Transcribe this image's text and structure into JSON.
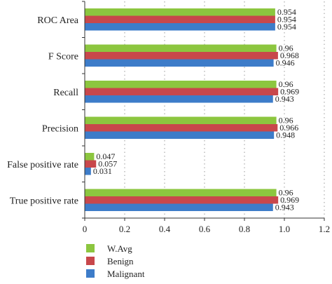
{
  "chart_data": {
    "type": "bar",
    "orientation": "horizontal",
    "categories": [
      "ROC Area",
      "F Score",
      "Recall",
      "Precision",
      "False positive rate",
      "True positive rate"
    ],
    "series": [
      {
        "name": "W.Avg",
        "color": "#8cc63f",
        "values": [
          0.954,
          0.96,
          0.96,
          0.96,
          0.047,
          0.96
        ],
        "labels": [
          "0.954",
          "0.96",
          "0.96",
          "0.96",
          "0.047",
          "0.96"
        ]
      },
      {
        "name": "Benign",
        "color": "#c8474b",
        "values": [
          0.954,
          0.968,
          0.969,
          0.966,
          0.057,
          0.969
        ],
        "labels": [
          "0.954",
          "0.968",
          "0.969",
          "0.966",
          "0.057",
          "0.969"
        ]
      },
      {
        "name": "Malignant",
        "color": "#3d7cc9",
        "values": [
          0.954,
          0.946,
          0.943,
          0.948,
          0.031,
          0.943
        ],
        "labels": [
          "0.954",
          "0.946",
          "0.943",
          "0.948",
          "0.031",
          "0.943"
        ]
      }
    ],
    "xlim": [
      0,
      1.2
    ],
    "xticks": [
      "0",
      "0.2",
      "0.4",
      "0.6",
      "0.8",
      "1.0",
      "1.2"
    ],
    "xtick_values": [
      0,
      0.2,
      0.4,
      0.6,
      0.8,
      1.0,
      1.2
    ],
    "grid": "vertical dotted",
    "legend_position": "bottom-left"
  }
}
